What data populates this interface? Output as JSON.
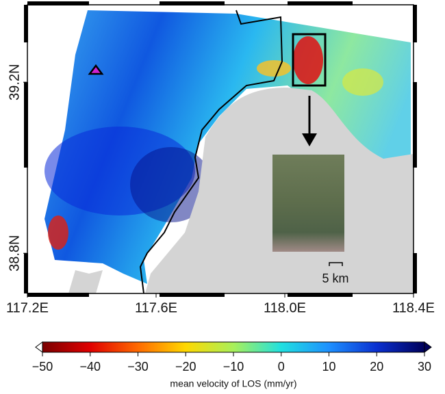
{
  "map": {
    "lon_ticks": [
      {
        "value": 117.2,
        "label": "117.2E"
      },
      {
        "value": 117.6,
        "label": "117.6E"
      },
      {
        "value": 118.0,
        "label": "118.0E"
      },
      {
        "value": 118.4,
        "label": "118.4E"
      }
    ],
    "lat_ticks": [
      {
        "value": 39.2,
        "label": "39.2N"
      },
      {
        "value": 38.8,
        "label": "38.8N"
      }
    ],
    "lonlim": [
      117.2,
      118.4
    ],
    "latlim": [
      38.706,
      39.381
    ],
    "scale_bar": "5 km"
  },
  "colorbar": {
    "label": "mean velocity of LOS (mm/yr)",
    "lim": [
      -50,
      30
    ],
    "ticks": [
      {
        "value": -50,
        "label": "−50"
      },
      {
        "value": -40,
        "label": "−40"
      },
      {
        "value": -30,
        "label": "−30"
      },
      {
        "value": -20,
        "label": "−20"
      },
      {
        "value": -10,
        "label": "−10"
      },
      {
        "value": 0,
        "label": "0"
      },
      {
        "value": 10,
        "label": "10"
      },
      {
        "value": 20,
        "label": "20"
      },
      {
        "value": 30,
        "label": "30"
      }
    ],
    "colors": [
      "#7a0000",
      "#e00000",
      "#ff6a00",
      "#ffd800",
      "#a8f05a",
      "#20e0e0",
      "#1e90ff",
      "#0a30d0",
      "#00005a"
    ]
  }
}
